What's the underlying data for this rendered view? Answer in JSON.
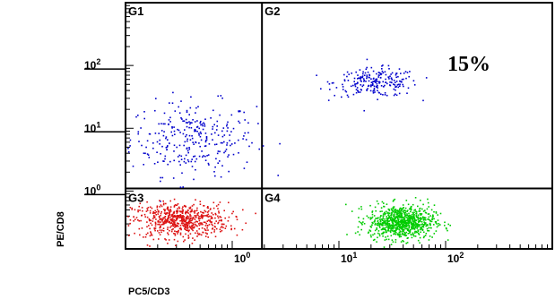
{
  "chart_data": {
    "type": "scatter",
    "title": "",
    "xlabel": "PC5/CD3",
    "ylabel": "PE/CD8",
    "x_scale": "log",
    "y_scale": "log",
    "xlim": [
      0.1,
      1000
    ],
    "ylim": [
      0.12,
      1000
    ],
    "x_tick_labels": [
      {
        "base": "10",
        "exp": "0",
        "value": 1
      },
      {
        "base": "10",
        "exp": "1",
        "value": 10
      },
      {
        "base": "10",
        "exp": "2",
        "value": 100
      }
    ],
    "y_tick_labels": [
      {
        "base": "10",
        "exp": "0",
        "value": 1
      },
      {
        "base": "10",
        "exp": "1",
        "value": 10
      },
      {
        "base": "10",
        "exp": "2",
        "value": 100
      }
    ],
    "gate_divider": {
      "x": 1.9,
      "y": 1.1
    },
    "gates": [
      {
        "label": "G1",
        "color": "#0000cc",
        "count": 300,
        "center": [
          0.42,
          7.0
        ],
        "spread": [
          0.42,
          0.42
        ]
      },
      {
        "label": "G2",
        "color": "#0000cc",
        "count": 230,
        "center": [
          22,
          55
        ],
        "spread": [
          0.28,
          0.16
        ],
        "percent": "15%"
      },
      {
        "label": "G3",
        "color": "#dd1111",
        "count": 650,
        "center": [
          0.32,
          0.35
        ],
        "spread": [
          0.32,
          0.2
        ]
      },
      {
        "label": "G4",
        "color": "#00cc00",
        "count": 850,
        "center": [
          38,
          0.33
        ],
        "spread": [
          0.22,
          0.19
        ]
      }
    ],
    "grid": false,
    "legend": "none"
  }
}
